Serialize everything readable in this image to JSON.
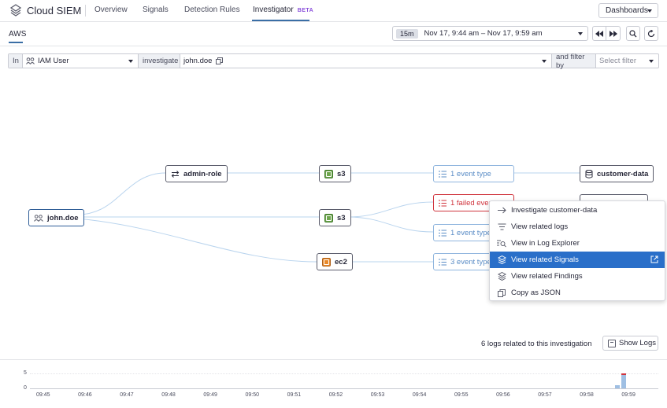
{
  "app": {
    "name": "Cloud SIEM",
    "nav": [
      "Overview",
      "Signals",
      "Detection Rules",
      "Investigator"
    ],
    "beta_label": "BETA",
    "dashboards_label": "Dashboards"
  },
  "subnav": {
    "tab": "AWS",
    "time_pill": "15m",
    "time_range": "Nov 17, 9:44 am – Nov 17, 9:59 am"
  },
  "query": {
    "in_label": "In",
    "entity_type": "IAM User",
    "investigate_label": "investigate",
    "entity_value": "john.doe",
    "filter_label": "and filter by",
    "filter_placeholder": "Select filter"
  },
  "graph": {
    "user": "john.doe",
    "role": "admin-role",
    "services": [
      "s3",
      "s3",
      "ec2"
    ],
    "events": [
      "1 event type",
      "1 failed events",
      "1 event type",
      "3 event type"
    ],
    "resource": "customer-data"
  },
  "menu": {
    "items": [
      "Investigate customer-data",
      "View related logs",
      "View in Log Explorer",
      "View related Signals",
      "View related Findings",
      "Copy as JSON"
    ],
    "highlighted_index": 3
  },
  "logs": {
    "count_text": "6 logs related to this investigation",
    "show_button": "Show Logs"
  },
  "timeline": {
    "y_ticks": [
      "5",
      "0"
    ],
    "x_ticks": [
      "09:45",
      "09:46",
      "09:47",
      "09:48",
      "09:49",
      "09:50",
      "09:51",
      "09:52",
      "09:53",
      "09:54",
      "09:55",
      "09:56",
      "09:57",
      "09:58",
      "09:59"
    ],
    "bars": [
      {
        "time": "09:59",
        "value": 1,
        "color": "#9fbfe3"
      },
      {
        "time": "09:59",
        "value": 5,
        "color": "#9fbfe3",
        "error_value": 1,
        "error_color": "#d0343d"
      }
    ]
  },
  "colors": {
    "accent": "#2a6fc9",
    "danger": "#d0343d",
    "edge": "#b9d4ee"
  }
}
